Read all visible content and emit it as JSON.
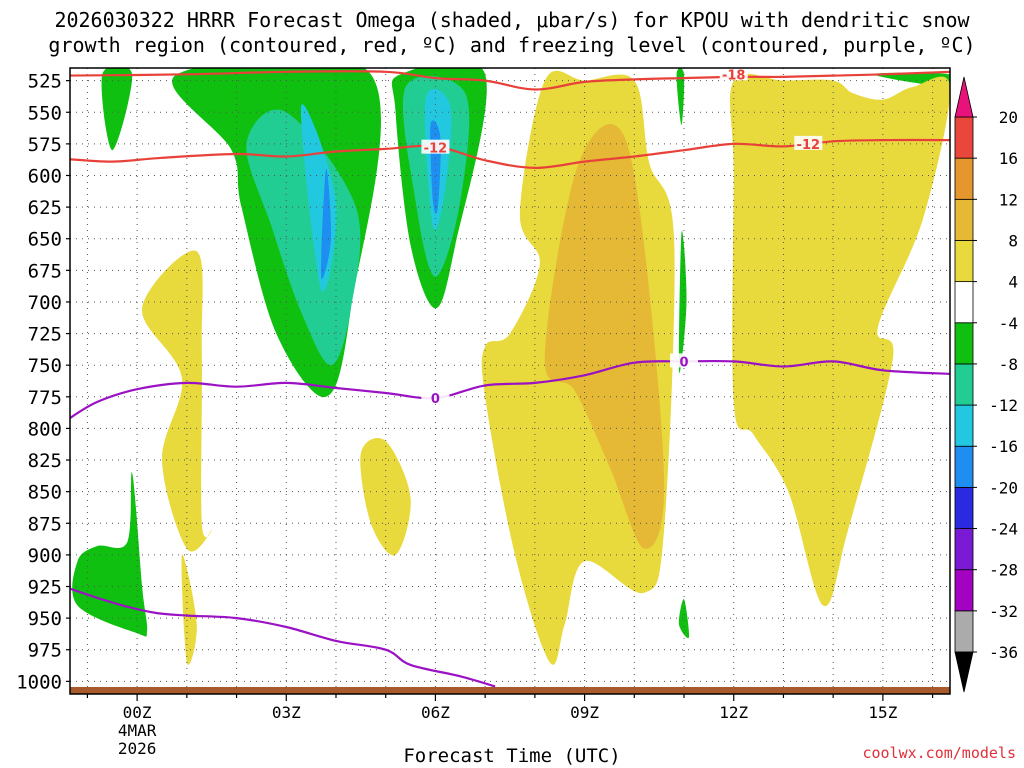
{
  "title": {
    "line1": "2026030322 HRRR Forecast Omega (shaded, μbar/s) for KPOU with dendritic snow",
    "line2": "growth region (contoured, red, ºC) and freezing level (contoured, purple, ºC)"
  },
  "credit": "coolwx.com/models",
  "colors": {
    "dgz_line": "#e8413a",
    "freezing_line": "#9b12c4",
    "ground": "#a85a2c",
    "grid": "#555555"
  },
  "chart_data": {
    "type": "time-height contour",
    "xlabel": "Forecast Time (UTC)",
    "ylabel": "",
    "x_unit": "forecast hour",
    "xlim": [
      -1.35,
      16.35
    ],
    "ylim": [
      1010,
      515
    ],
    "x_ticks": [
      {
        "hour": 0,
        "label": "00Z",
        "sub1": "4MAR",
        "sub2": "2026"
      },
      {
        "hour": 3,
        "label": "03Z"
      },
      {
        "hour": 6,
        "label": "06Z"
      },
      {
        "hour": 9,
        "label": "09Z"
      },
      {
        "hour": 12,
        "label": "12Z"
      },
      {
        "hour": 15,
        "label": "15Z"
      }
    ],
    "y_ticks": [
      525,
      550,
      575,
      600,
      625,
      650,
      675,
      700,
      725,
      750,
      775,
      800,
      825,
      850,
      875,
      900,
      925,
      950,
      975,
      1000
    ],
    "colorbar": {
      "levels": [
        -36,
        -32,
        -28,
        -24,
        -20,
        -16,
        -12,
        -8,
        -4,
        4,
        8,
        12,
        16,
        20
      ],
      "colors": [
        "#ababab",
        "#a302c2",
        "#7a1ad4",
        "#2a2ae0",
        "#1e8ef0",
        "#22c8e0",
        "#21cd93",
        "#10c010",
        "#ffffff",
        "#e8d93c",
        "#e5b935",
        "#e5962d",
        "#e9473c",
        "#e8127a"
      ],
      "under_color": "#000000",
      "over_color": "#e8127a"
    },
    "contours": [
      {
        "name": "dendritic growth -18C (red)",
        "value": -18,
        "label": "-18",
        "color": "#e8413a",
        "points": [
          [
            -1.4,
            521
          ],
          [
            1,
            520
          ],
          [
            3,
            518
          ],
          [
            5,
            518
          ],
          [
            6,
            523
          ],
          [
            7,
            525
          ],
          [
            8,
            532
          ],
          [
            9,
            526
          ],
          [
            10,
            524
          ],
          [
            11,
            523
          ],
          [
            12,
            522
          ],
          [
            13,
            522
          ],
          [
            14,
            521
          ],
          [
            15,
            520
          ],
          [
            16.4,
            518
          ]
        ]
      },
      {
        "name": "dendritic growth -12C (red)",
        "value": -12,
        "label": "-12",
        "color": "#e8413a",
        "points": [
          [
            -1.4,
            587
          ],
          [
            -0.5,
            589
          ],
          [
            0.5,
            586
          ],
          [
            2,
            583
          ],
          [
            3,
            585
          ],
          [
            4,
            581
          ],
          [
            5,
            579
          ],
          [
            6,
            577
          ],
          [
            7,
            588
          ],
          [
            8,
            594
          ],
          [
            9,
            589
          ],
          [
            10,
            585
          ],
          [
            11,
            580
          ],
          [
            12,
            575
          ],
          [
            13,
            577
          ],
          [
            14,
            573
          ],
          [
            15,
            572
          ],
          [
            16.4,
            572
          ]
        ]
      },
      {
        "name": "freezing level 0C upper (purple)",
        "value": 0,
        "label": "0",
        "color": "#9b12c4",
        "points": [
          [
            -1.4,
            793
          ],
          [
            -0.8,
            779
          ],
          [
            0,
            769
          ],
          [
            1,
            764
          ],
          [
            2,
            767
          ],
          [
            3,
            764
          ],
          [
            4,
            768
          ],
          [
            5,
            772
          ],
          [
            6,
            776
          ],
          [
            7,
            766
          ],
          [
            8,
            764
          ],
          [
            9,
            758
          ],
          [
            10,
            748
          ],
          [
            11,
            747
          ],
          [
            12,
            747
          ],
          [
            13,
            751
          ],
          [
            14,
            747
          ],
          [
            15,
            754
          ],
          [
            16.4,
            757
          ]
        ]
      },
      {
        "name": "freezing level 0C lower (purple)",
        "value": 0,
        "label": "",
        "color": "#9b12c4",
        "points": [
          [
            -1.4,
            926
          ],
          [
            -0.8,
            934
          ],
          [
            -0.2,
            941
          ],
          [
            0.4,
            946
          ],
          [
            1,
            948
          ],
          [
            2,
            950
          ],
          [
            3,
            957
          ],
          [
            4,
            968
          ],
          [
            5,
            975
          ],
          [
            5.5,
            987
          ],
          [
            6.5,
            996
          ],
          [
            7.2,
            1004
          ]
        ]
      }
    ],
    "omega_regions": [
      {
        "name": "green-left-top",
        "value": -6,
        "points": [
          [
            -0.7,
            520
          ],
          [
            -0.1,
            520
          ],
          [
            -0.5,
            580
          ]
        ]
      },
      {
        "name": "green-left-bottom",
        "value": -6,
        "points": [
          [
            -1.2,
            905
          ],
          [
            -0.8,
            893
          ],
          [
            -0.2,
            890
          ],
          [
            -0.1,
            835
          ],
          [
            0.1,
            925
          ],
          [
            0.2,
            960
          ],
          [
            0,
            962
          ],
          [
            -1.2,
            940
          ]
        ]
      },
      {
        "name": "green-east-upper",
        "value": -6,
        "points": [
          [
            0.8,
            520
          ],
          [
            4.7,
            520
          ],
          [
            4.3,
            705
          ],
          [
            3.8,
            775
          ],
          [
            2.8,
            725
          ],
          [
            2.1,
            625
          ],
          [
            1.9,
            580
          ]
        ]
      },
      {
        "name": "teal-east-upper",
        "value": -10,
        "points": [
          [
            2.2,
            575
          ],
          [
            3,
            550
          ],
          [
            4.4,
            625
          ],
          [
            4.3,
            705
          ],
          [
            3.9,
            750
          ],
          [
            3.3,
            708
          ],
          [
            2.7,
            640
          ]
        ]
      },
      {
        "name": "cyan-east",
        "value": -14,
        "points": [
          [
            3.3,
            545
          ],
          [
            4,
            620
          ],
          [
            3.7,
            690
          ]
        ]
      },
      {
        "name": "blue-east",
        "value": -18,
        "points": [
          [
            3.8,
            595
          ],
          [
            3.9,
            650
          ],
          [
            3.7,
            680
          ]
        ]
      },
      {
        "name": "green-center",
        "value": -6,
        "points": [
          [
            5.3,
            520
          ],
          [
            7.0,
            520
          ],
          [
            6.4,
            655
          ],
          [
            6.0,
            705
          ],
          [
            5.5,
            655
          ],
          [
            5.2,
            550
          ]
        ]
      },
      {
        "name": "teal-center",
        "value": -10,
        "points": [
          [
            5.4,
            530
          ],
          [
            6.6,
            535
          ],
          [
            6.5,
            620
          ],
          [
            6.0,
            680
          ],
          [
            5.6,
            620
          ]
        ]
      },
      {
        "name": "cyan-center",
        "value": -14,
        "points": [
          [
            5.8,
            540
          ],
          [
            6.3,
            545
          ],
          [
            6.2,
            610
          ],
          [
            5.95,
            640
          ]
        ]
      },
      {
        "name": "blue-center",
        "value": -18,
        "points": [
          [
            5.9,
            560
          ],
          [
            6.1,
            570
          ],
          [
            6.05,
            625
          ],
          [
            5.95,
            620
          ]
        ]
      },
      {
        "name": "green-right-top",
        "value": -6,
        "points": [
          [
            14.8,
            520
          ],
          [
            16.35,
            520
          ],
          [
            16.35,
            530
          ]
        ]
      },
      {
        "name": "green-spike-top",
        "value": -6,
        "points": [
          [
            10.85,
            520
          ],
          [
            11.0,
            520
          ],
          [
            10.95,
            560
          ]
        ]
      },
      {
        "name": "green-spike-mid",
        "value": -6,
        "points": [
          [
            10.95,
            645
          ],
          [
            11.05,
            700
          ],
          [
            10.9,
            755
          ]
        ]
      },
      {
        "name": "green-spike-low",
        "value": -6,
        "points": [
          [
            11.0,
            935
          ],
          [
            11.1,
            965
          ],
          [
            10.9,
            955
          ]
        ]
      },
      {
        "name": "yellow-left-lobe",
        "value": 6,
        "points": [
          [
            0.1,
            705
          ],
          [
            1.2,
            660
          ],
          [
            1.3,
            740
          ],
          [
            1.3,
            875
          ],
          [
            1.5,
            880
          ],
          [
            1.0,
            895
          ],
          [
            0.5,
            825
          ],
          [
            0.9,
            760
          ]
        ]
      },
      {
        "name": "yellow-left-small",
        "value": 6,
        "points": [
          [
            0.9,
            900
          ],
          [
            1.2,
            955
          ],
          [
            1.0,
            985
          ]
        ]
      },
      {
        "name": "yellow-mid-small",
        "value": 6,
        "points": [
          [
            4.5,
            820
          ],
          [
            5.0,
            810
          ],
          [
            5.5,
            855
          ],
          [
            5.2,
            900
          ],
          [
            4.7,
            875
          ]
        ]
      },
      {
        "name": "yellow-center-main",
        "value": 6,
        "points": [
          [
            7.0,
            735
          ],
          [
            7.5,
            725
          ],
          [
            8.1,
            670
          ],
          [
            7.7,
            630
          ],
          [
            8.2,
            525
          ],
          [
            9.0,
            525
          ],
          [
            10.0,
            525
          ],
          [
            10.3,
            590
          ],
          [
            10.8,
            650
          ],
          [
            10.6,
            880
          ],
          [
            10.2,
            930
          ],
          [
            9.0,
            905
          ],
          [
            8.6,
            955
          ],
          [
            8.3,
            985
          ],
          [
            7.6,
            900
          ],
          [
            7.0,
            775
          ]
        ]
      },
      {
        "name": "orange-center",
        "value": 10,
        "points": [
          [
            8.2,
            745
          ],
          [
            8.8,
            600
          ],
          [
            9.6,
            560
          ],
          [
            10.1,
            625
          ],
          [
            10.6,
            840
          ],
          [
            10.2,
            895
          ],
          [
            9.5,
            830
          ],
          [
            8.8,
            770
          ]
        ]
      },
      {
        "name": "yellow-right-main",
        "value": 6,
        "points": [
          [
            12.0,
            525
          ],
          [
            13.0,
            525
          ],
          [
            14.0,
            525
          ],
          [
            14.4,
            535
          ],
          [
            15.0,
            540
          ],
          [
            15.6,
            530
          ],
          [
            16.35,
            530
          ],
          [
            15.8,
            635
          ],
          [
            14.9,
            720
          ],
          [
            15.2,
            745
          ],
          [
            14.3,
            880
          ],
          [
            13.8,
            940
          ],
          [
            13.1,
            850
          ],
          [
            12.4,
            805
          ],
          [
            12.0,
            780
          ],
          [
            12.0,
            600
          ]
        ]
      }
    ]
  }
}
